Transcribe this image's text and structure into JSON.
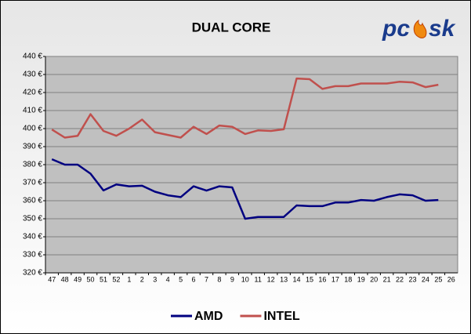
{
  "chart_data": {
    "type": "line",
    "title": "DUAL CORE",
    "logo": [
      "pc",
      "sk"
    ],
    "categories": [
      "47",
      "48",
      "49",
      "50",
      "51",
      "52",
      "1",
      "2",
      "3",
      "4",
      "5",
      "6",
      "7",
      "8",
      "9",
      "10",
      "11",
      "12",
      "13",
      "14",
      "15",
      "16",
      "17",
      "18",
      "19",
      "20",
      "21",
      "22",
      "23",
      "24",
      "25",
      "26"
    ],
    "series": [
      {
        "name": "AMD",
        "color": "#000080",
        "values": [
          383,
          380,
          380,
          375,
          365.7,
          369,
          368,
          368.3,
          365,
          363,
          362,
          368,
          365.6,
          368,
          367.4,
          350,
          351,
          351,
          351,
          357.4,
          357,
          357,
          359,
          359,
          360.4,
          360,
          362,
          363.5,
          363,
          360,
          360.4,
          null
        ]
      },
      {
        "name": "INTEL",
        "color": "#c0504d",
        "values": [
          399.5,
          395,
          396,
          408,
          398.7,
          396,
          400,
          405,
          398,
          396.5,
          395,
          401,
          397,
          401.7,
          401,
          397,
          399,
          398.7,
          399.6,
          427.8,
          427.4,
          422,
          423.5,
          423.5,
          425,
          425,
          425,
          426,
          425.6,
          423,
          424.3,
          null
        ]
      }
    ],
    "ylim": [
      320,
      440
    ],
    "yticks": [
      {
        "value": 320,
        "label": "320 €"
      },
      {
        "value": 330,
        "label": "330 €"
      },
      {
        "value": 340,
        "label": "340 €"
      },
      {
        "value": 350,
        "label": "350 €"
      },
      {
        "value": 360,
        "label": "360 €"
      },
      {
        "value": 370,
        "label": "370 €"
      },
      {
        "value": 380,
        "label": "380 €"
      },
      {
        "value": 390,
        "label": "390 €"
      },
      {
        "value": 400,
        "label": "400 €"
      },
      {
        "value": 410,
        "label": "410 €"
      },
      {
        "value": 420,
        "label": "420 €"
      },
      {
        "value": 430,
        "label": "430 €"
      },
      {
        "value": 440,
        "label": "440 €"
      }
    ],
    "grid": true,
    "legend": "bottom"
  }
}
